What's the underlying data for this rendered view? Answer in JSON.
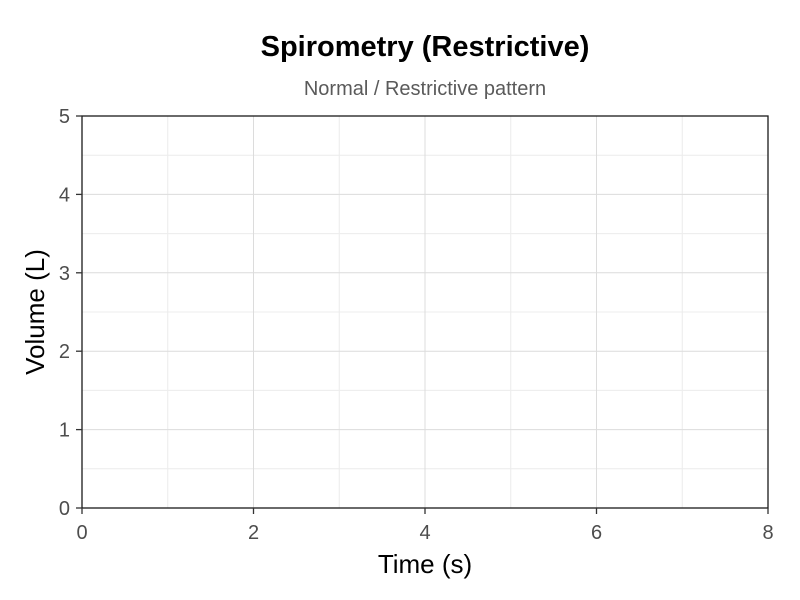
{
  "chart_data": {
    "type": "line",
    "title": "Spirometry (Restrictive)",
    "subtitle": "Normal / Restrictive pattern",
    "xlabel": "Time (s)",
    "ylabel": "Volume (L)",
    "xlim": [
      0,
      8
    ],
    "ylim": [
      0,
      5
    ],
    "x_ticks": [
      0,
      2,
      4,
      6,
      8
    ],
    "y_ticks": [
      0,
      1,
      2,
      3,
      4,
      5
    ],
    "x_minor_ticks": [
      1,
      3,
      5,
      7
    ],
    "y_minor_ticks": [
      0.5,
      1.5,
      2.5,
      3.5,
      4.5
    ],
    "grid": true,
    "series": []
  }
}
